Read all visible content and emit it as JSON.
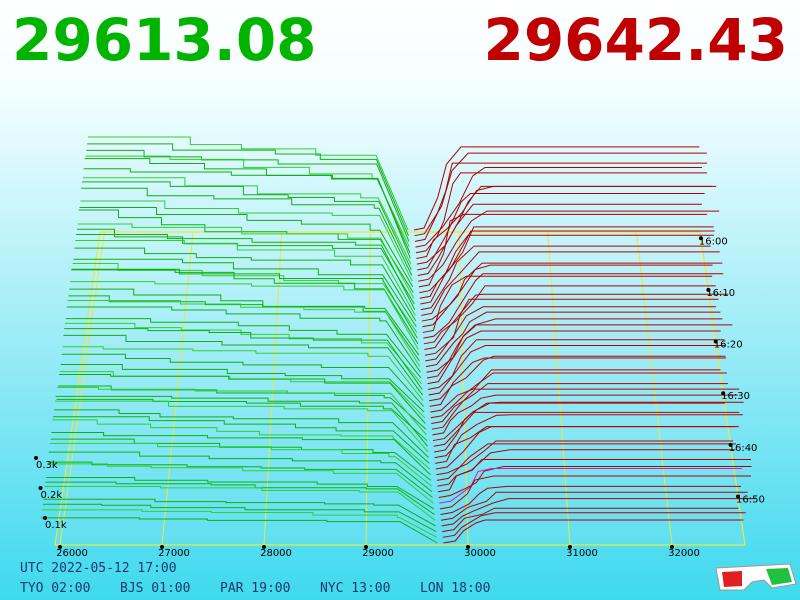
{
  "bid": "29613.08",
  "ask": "29642.43",
  "price_ticks": [
    "26000",
    "27000",
    "28000",
    "29000",
    "30000",
    "31000",
    "32000"
  ],
  "time_ticks": [
    "16:00",
    "16:10",
    "16:20",
    "16:30",
    "16:40",
    "16:50"
  ],
  "depth_ticks": [
    "0.3k",
    "0.2k",
    "0.1k"
  ],
  "utc": "UTC 2022-05-12 17:00",
  "zones": [
    "TYO 02:00",
    "BJS 01:00",
    "PAR 19:00",
    "NYC 13:00",
    "LON 18:00"
  ]
}
